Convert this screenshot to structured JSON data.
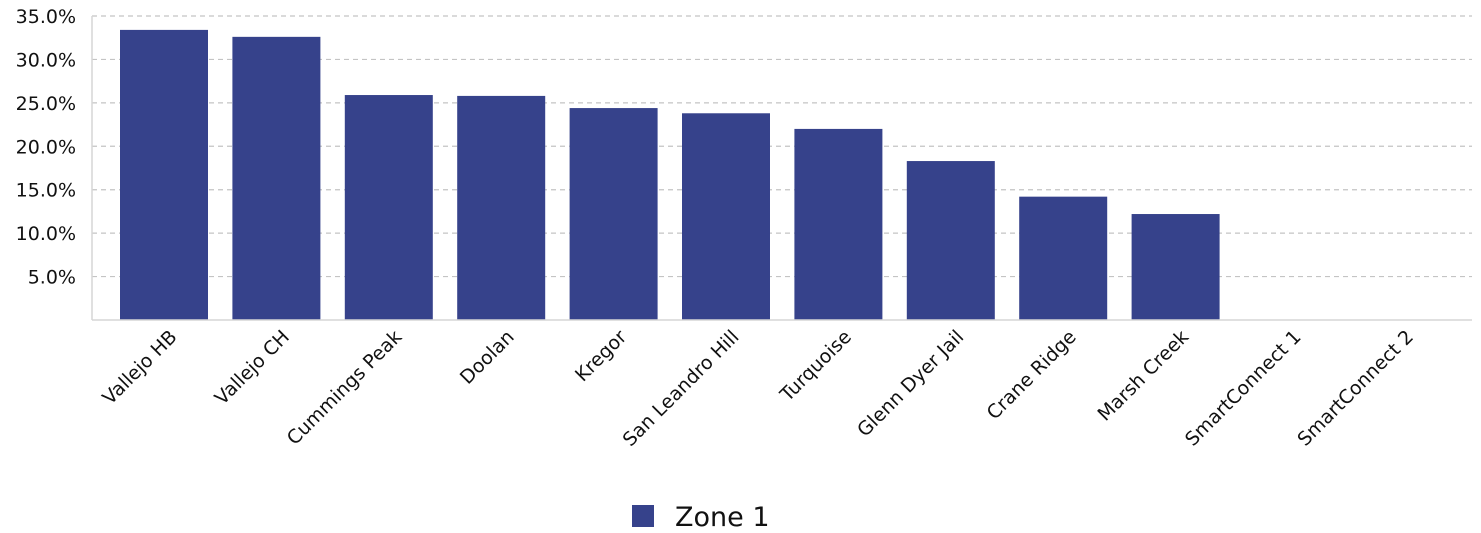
{
  "chart_data": {
    "type": "bar",
    "categories": [
      "Vallejo HB",
      "Vallejo CH",
      "Cummings Peak",
      "Doolan",
      "Kregor",
      "San Leandro Hill",
      "Turquoise",
      "Glenn Dyer Jail",
      "Crane Ridge",
      "Marsh Creek",
      "SmartConnect 1",
      "SmartConnect 2"
    ],
    "series": [
      {
        "name": "Zone 1",
        "color": "#36428b",
        "values": [
          33.4,
          32.6,
          25.9,
          25.8,
          24.4,
          23.8,
          22.0,
          18.3,
          14.2,
          12.2,
          0,
          0
        ]
      }
    ],
    "ylim": [
      0,
      35
    ],
    "yticks": [
      {
        "value": 5,
        "label": "5.0%"
      },
      {
        "value": 10,
        "label": "10.0%"
      },
      {
        "value": 15,
        "label": "15.0%"
      },
      {
        "value": 20,
        "label": "20.0%"
      },
      {
        "value": 25,
        "label": "25.0%"
      },
      {
        "value": 30,
        "label": "30.0%"
      },
      {
        "value": 35,
        "label": "35.0%"
      }
    ],
    "grid": true,
    "legend": "bottom-center",
    "title": "",
    "xlabel": "",
    "ylabel": ""
  }
}
